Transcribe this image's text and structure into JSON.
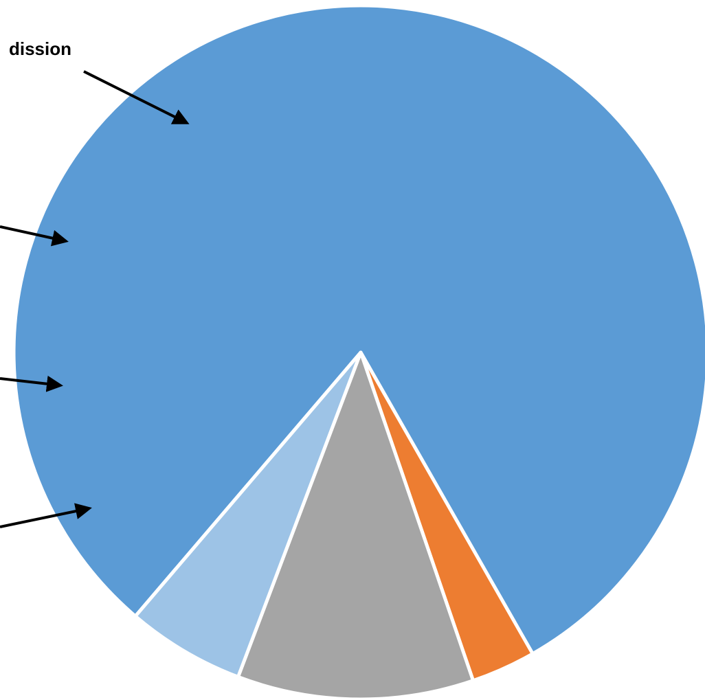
{
  "chart_data": {
    "type": "pie",
    "slices": [
      {
        "label": "dission",
        "value": 80.5,
        "color": "#5B9BD5"
      },
      {
        "label": "",
        "value": 3.0,
        "color": "#ED7D31"
      },
      {
        "label": "",
        "value": 11.0,
        "color": "#A5A5A5"
      },
      {
        "label": "",
        "value": 5.5,
        "color": "#9DC3E6"
      }
    ],
    "slice_border_color": "#ffffff",
    "annotation_color": "#000000"
  }
}
